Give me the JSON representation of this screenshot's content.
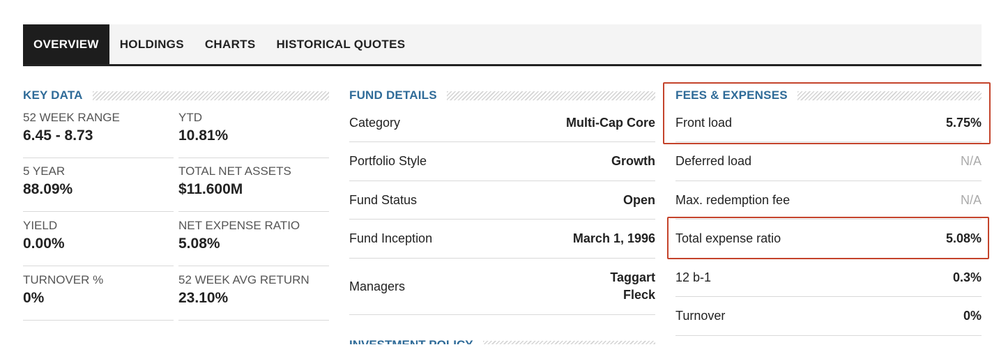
{
  "tabs": [
    {
      "label": "OVERVIEW",
      "active": true
    },
    {
      "label": "HOLDINGS",
      "active": false
    },
    {
      "label": "CHARTS",
      "active": false
    },
    {
      "label": "HISTORICAL QUOTES",
      "active": false
    }
  ],
  "key_data": {
    "title": "KEY DATA",
    "items": [
      {
        "label": "52 WEEK RANGE",
        "value": "6.45 - 8.73"
      },
      {
        "label": "YTD",
        "value": "10.81%"
      },
      {
        "label": "5 YEAR",
        "value": "88.09%"
      },
      {
        "label": "TOTAL NET ASSETS",
        "value": "$11.600M"
      },
      {
        "label": "YIELD",
        "value": "0.00%"
      },
      {
        "label": "NET EXPENSE RATIO",
        "value": "5.08%"
      },
      {
        "label": "TURNOVER %",
        "value": "0%"
      },
      {
        "label": "52 WEEK AVG RETURN",
        "value": "23.10%"
      }
    ]
  },
  "fund_details": {
    "title": "FUND DETAILS",
    "rows": [
      {
        "label": "Category",
        "value": "Multi-Cap Core"
      },
      {
        "label": "Portfolio Style",
        "value": "Growth"
      },
      {
        "label": "Fund Status",
        "value": "Open"
      },
      {
        "label": "Fund Inception",
        "value": "March 1, 1996"
      },
      {
        "label": "Managers",
        "value_line1": "Taggart",
        "value_line2": "Fleck"
      }
    ],
    "next_section_title": "INVESTMENT POLICY"
  },
  "fees": {
    "title": "FEES & EXPENSES",
    "rows": [
      {
        "label": "Front load",
        "value": "5.75%"
      },
      {
        "label": "Deferred load",
        "value": "N/A"
      },
      {
        "label": "Max. redemption fee",
        "value": "N/A"
      },
      {
        "label": "Total expense ratio",
        "value": "5.08%"
      },
      {
        "label": "12 b-1",
        "value": "0.3%"
      },
      {
        "label": "Turnover",
        "value": "0%"
      }
    ]
  },
  "colors": {
    "section_title": "#2f6b98",
    "highlight_box": "#c4432b",
    "active_tab_bg": "#1d1d1d"
  }
}
